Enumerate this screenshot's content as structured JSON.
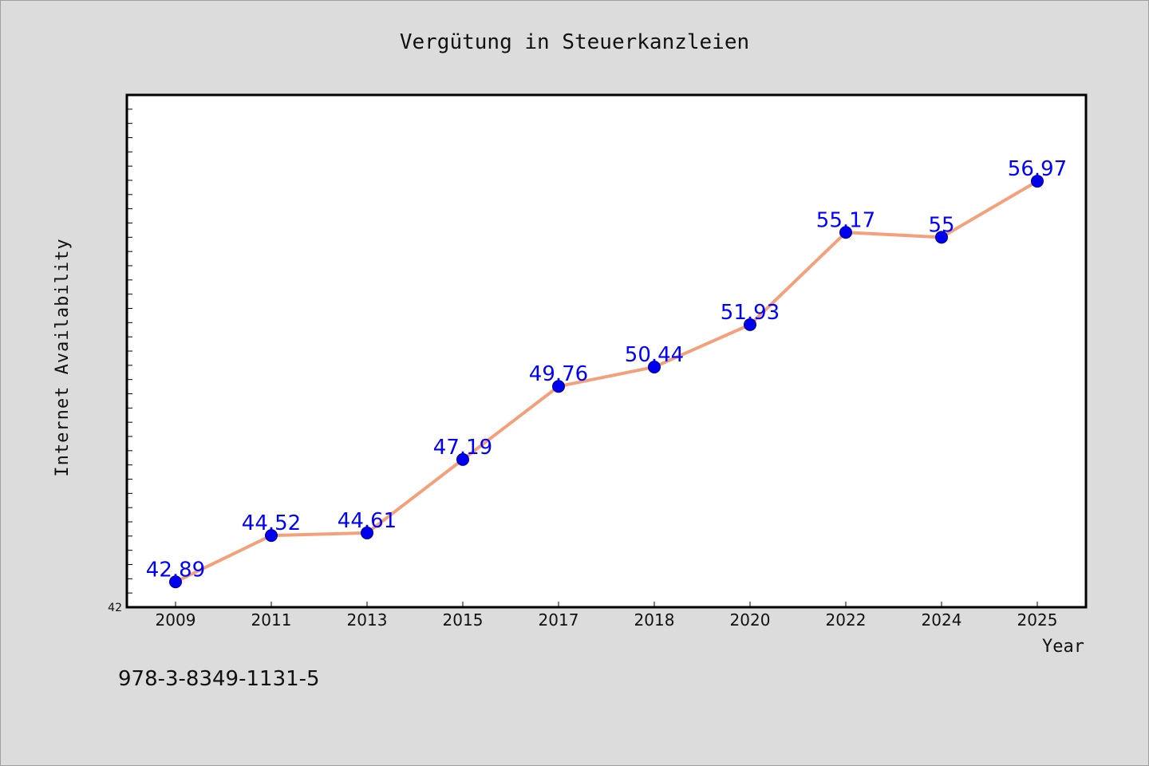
{
  "chart_data": {
    "type": "line",
    "title": "Vergütung in Steuerkanzleien",
    "xlabel": "Year",
    "ylabel": "Internet Availability",
    "categories": [
      "2009",
      "2011",
      "2013",
      "2015",
      "2017",
      "2018",
      "2020",
      "2022",
      "2024",
      "2025"
    ],
    "series": [
      {
        "values": [
          42.89,
          44.52,
          44.61,
          47.19,
          49.76,
          50.44,
          51.93,
          55.17,
          55,
          56.97
        ],
        "color": "#f4a07a",
        "marker_color": "#0000ee"
      }
    ],
    "data_labels": [
      "42.89",
      "44.52",
      "44.61",
      "47.19",
      "49.76",
      "50.44",
      "51.93",
      "55.17",
      "55",
      "56.97"
    ],
    "ylim": [
      42,
      60
    ],
    "y_tick_labels": [
      "42"
    ],
    "grid": false,
    "label_color": "#0000ff"
  },
  "footnote": "978-3-8349-1131-5"
}
